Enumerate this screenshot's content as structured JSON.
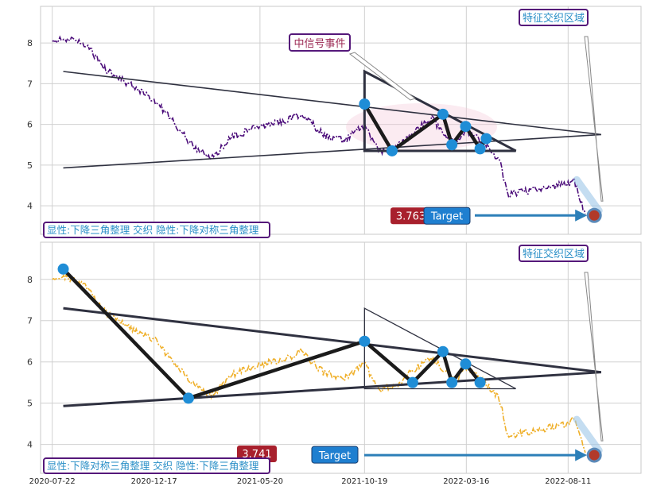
{
  "dates": [
    "2020-07-22",
    "2020-12-17",
    "2021-05-20",
    "2021-10-19",
    "2022-03-16",
    "2022-08-11"
  ],
  "colors": {
    "panel_border": "#c8c8c8",
    "grid": "#d0d0d0",
    "trend_line": "#2f3140",
    "pattern": "#1b1b1b",
    "pivot": "#1f8dd6",
    "label_border": "#55187a",
    "label_text": "#2a8fc7",
    "event_text": "#9c2a54",
    "target_box": "#a8202d",
    "target_blue": "#1f7fd0",
    "arrow": "#2c7fb8",
    "price_top": "#4b0c7a",
    "price_bottom": "#efb02b"
  },
  "top": {
    "pattern_label": "显性:下降三角整理 交织 隐性:下降对称三角整理",
    "region_label": "特征交织区域",
    "event_label": "中信号事件",
    "target_value": "3.763",
    "target_label": "Target"
  },
  "bottom": {
    "pattern_label": "显性:下降对称三角整理 交织 隐性:下降三角整理",
    "region_label": "特征交织区域",
    "target_value": "3.741",
    "target_label": "Target"
  },
  "chart_data": [
    {
      "type": "line",
      "title": "",
      "x_tick_labels": [
        "2020-07-22",
        "2020-12-17",
        "2021-05-20",
        "2021-10-19",
        "2022-03-16",
        "2022-08-11"
      ],
      "ylim": [
        3.3,
        8.9
      ],
      "yticks": [
        4,
        5,
        6,
        7,
        8
      ],
      "grid": true,
      "price_series": {
        "dates": [
          "2020-07-22",
          "2020-08-15",
          "2020-09-10",
          "2020-10-10",
          "2020-11-10",
          "2020-12-17",
          "2021-01-15",
          "2021-02-10",
          "2021-03-10",
          "2021-04-10",
          "2021-05-20",
          "2021-06-20",
          "2021-07-20",
          "2021-08-20",
          "2021-09-20",
          "2021-10-19",
          "2021-11-10",
          "2021-12-05",
          "2022-01-01",
          "2022-01-25",
          "2022-02-10",
          "2022-03-01",
          "2022-03-16",
          "2022-04-05",
          "2022-04-25",
          "2022-05-05",
          "2022-05-15",
          "2022-06-10",
          "2022-07-10",
          "2022-08-11",
          "2022-08-20",
          "2022-09-05"
        ],
        "values": [
          8.05,
          8.1,
          7.95,
          7.3,
          7.0,
          6.6,
          6.05,
          5.5,
          5.15,
          5.7,
          5.95,
          6.05,
          6.25,
          5.75,
          5.6,
          6.0,
          5.3,
          5.45,
          5.85,
          6.15,
          5.8,
          5.55,
          5.85,
          5.6,
          5.3,
          5.0,
          4.25,
          4.35,
          4.45,
          4.55,
          4.6,
          3.8
        ]
      },
      "explicit_pattern_points": [
        {
          "date": "2021-10-19",
          "value": 6.5
        },
        {
          "date": "2021-11-28",
          "value": 5.35
        },
        {
          "date": "2022-02-10",
          "value": 6.25
        },
        {
          "date": "2022-02-23",
          "value": 5.5
        },
        {
          "date": "2022-03-15",
          "value": 5.95
        },
        {
          "date": "2022-04-05",
          "value": 5.4
        },
        {
          "date": "2022-04-14",
          "value": 5.65
        }
      ],
      "upper_trendline": [
        {
          "date": "2020-08-07",
          "value": 7.3
        },
        {
          "date": "2022-09-28",
          "value": 5.75
        }
      ],
      "lower_trendline": [
        {
          "date": "2020-08-07",
          "value": 4.93
        },
        {
          "date": "2022-09-28",
          "value": 5.75
        }
      ],
      "hidden_triangle": [
        {
          "date": "2021-10-19",
          "value": 7.3
        },
        {
          "date": "2022-05-27",
          "value": 5.35
        },
        {
          "date": "2021-10-19",
          "value": 5.35
        }
      ],
      "target": 3.763,
      "target_date": "2022-09-18"
    },
    {
      "type": "line",
      "title": "",
      "x_tick_labels": [
        "2020-07-22",
        "2020-12-17",
        "2021-05-20",
        "2021-10-19",
        "2022-03-16",
        "2022-08-11"
      ],
      "ylim": [
        3.3,
        8.9
      ],
      "yticks": [
        4,
        5,
        6,
        7,
        8
      ],
      "grid": true,
      "price_series": {
        "dates": [
          "2020-07-22",
          "2020-08-15",
          "2020-09-10",
          "2020-10-10",
          "2020-11-10",
          "2020-12-17",
          "2021-01-15",
          "2021-02-10",
          "2021-03-10",
          "2021-04-10",
          "2021-05-20",
          "2021-06-20",
          "2021-07-20",
          "2021-08-20",
          "2021-09-20",
          "2021-10-19",
          "2021-11-10",
          "2021-12-05",
          "2022-01-01",
          "2022-01-25",
          "2022-02-10",
          "2022-03-01",
          "2022-03-16",
          "2022-04-05",
          "2022-04-25",
          "2022-05-05",
          "2022-05-15",
          "2022-06-10",
          "2022-07-10",
          "2022-08-11",
          "2022-08-20",
          "2022-09-05"
        ],
        "values": [
          7.95,
          8.05,
          7.8,
          7.15,
          6.85,
          6.55,
          6.0,
          5.5,
          5.15,
          5.7,
          5.95,
          6.05,
          6.25,
          5.75,
          5.6,
          5.95,
          5.3,
          5.45,
          5.85,
          6.1,
          5.8,
          5.55,
          5.85,
          5.6,
          5.3,
          5.0,
          4.2,
          4.3,
          4.4,
          4.5,
          4.6,
          3.8
        ]
      },
      "explicit_pattern_points": [
        {
          "date": "2020-08-07",
          "value": 8.25
        },
        {
          "date": "2021-02-05",
          "value": 5.12
        },
        {
          "date": "2021-10-19",
          "value": 6.5
        },
        {
          "date": "2021-12-28",
          "value": 5.5
        },
        {
          "date": "2022-02-10",
          "value": 6.25
        },
        {
          "date": "2022-02-23",
          "value": 5.5
        },
        {
          "date": "2022-03-15",
          "value": 5.95
        },
        {
          "date": "2022-04-05",
          "value": 5.5
        }
      ],
      "upper_trendline": [
        {
          "date": "2020-08-07",
          "value": 7.3
        },
        {
          "date": "2022-09-28",
          "value": 5.75
        }
      ],
      "lower_trendline": [
        {
          "date": "2020-08-07",
          "value": 4.93
        },
        {
          "date": "2022-09-28",
          "value": 5.75
        }
      ],
      "hidden_triangle": [
        {
          "date": "2021-10-19",
          "value": 7.3
        },
        {
          "date": "2022-05-27",
          "value": 5.35
        },
        {
          "date": "2021-10-19",
          "value": 5.35
        }
      ],
      "target": 3.741,
      "target_date": "2022-09-18"
    }
  ]
}
